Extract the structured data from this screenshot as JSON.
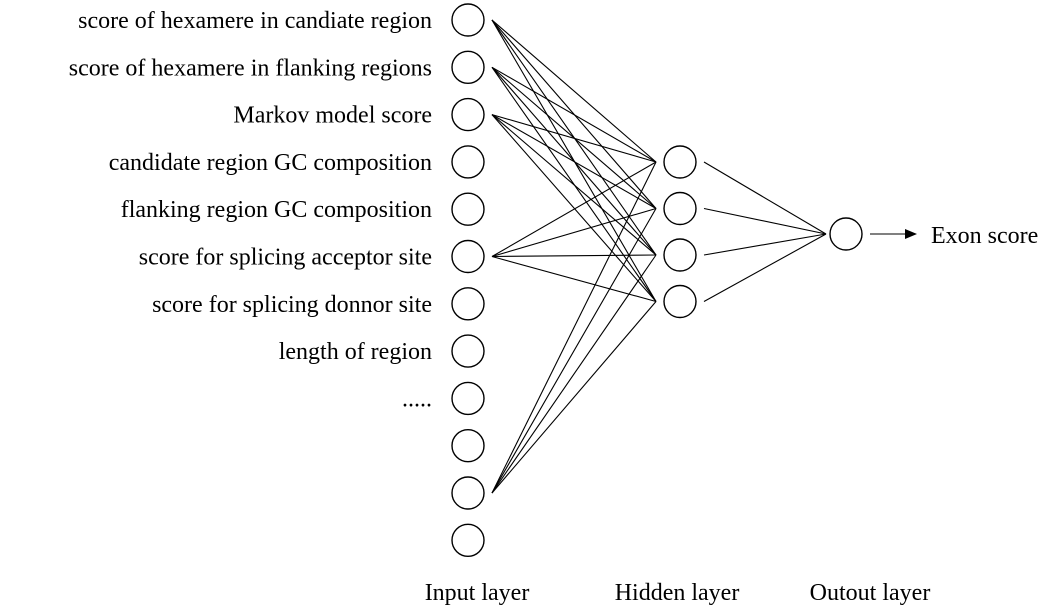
{
  "input_labels": [
    "score of hexamere in candiate region",
    "score of hexamere in flanking regions",
    "Markov model score",
    "candidate region GC composition",
    "flanking region GC composition",
    "score for splicing acceptor site",
    "score for splicing donnor site",
    "length of region",
    "....."
  ],
  "input_node_count": 12,
  "hidden_node_count": 4,
  "output_node_count": 1,
  "connected_input_indices": [
    0,
    1,
    2,
    5,
    10
  ],
  "output_label": "Exon score",
  "layer_labels": {
    "input": "Input layer",
    "hidden": "Hidden layer",
    "output": "Outout layer"
  }
}
